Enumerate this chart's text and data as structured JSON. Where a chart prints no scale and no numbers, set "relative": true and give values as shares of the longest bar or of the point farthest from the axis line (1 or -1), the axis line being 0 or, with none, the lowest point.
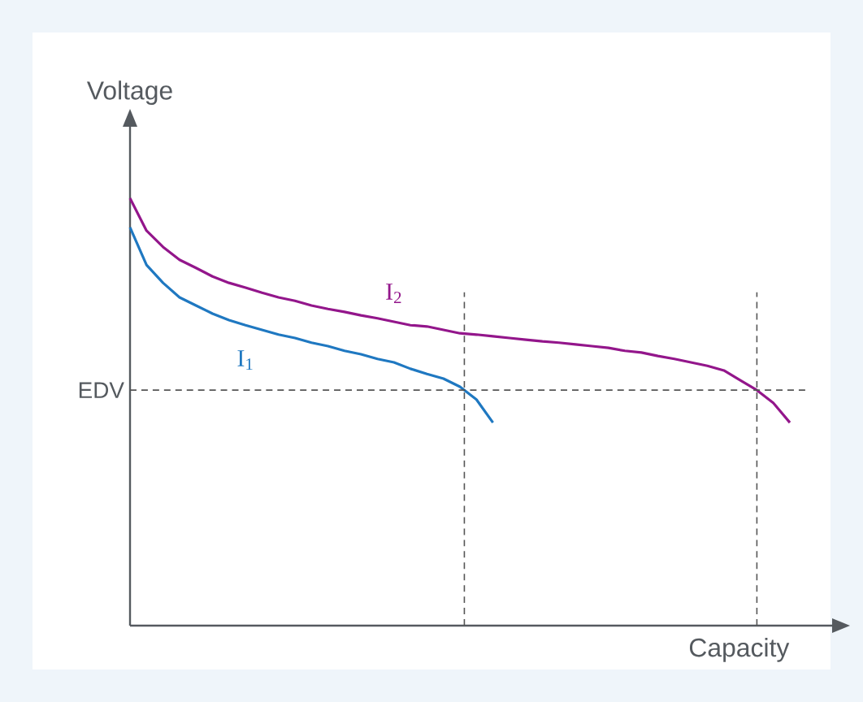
{
  "chart_data": {
    "type": "line",
    "relative": true,
    "xlabel": "Capacity",
    "ylabel": "Voltage",
    "legend": false,
    "categories": [
      null,
      null,
      null,
      null,
      null,
      null,
      null,
      null,
      null,
      null,
      null,
      null,
      null,
      null,
      null,
      null,
      null,
      null,
      null,
      null,
      null,
      null,
      null,
      null,
      null,
      null,
      null,
      null,
      null,
      null,
      null,
      null,
      null,
      null,
      null,
      null,
      null,
      null,
      null,
      null,
      null
    ],
    "series": [
      {
        "name": "I$_{1}$",
        "color": "#1f78c1",
        "values": [
          0.932,
          0.844,
          0.802,
          0.768,
          0.749,
          0.73,
          0.715,
          0.703,
          0.692,
          0.681,
          0.673,
          0.662,
          0.654,
          0.643,
          0.635,
          0.624,
          0.616,
          0.601,
          0.589,
          0.578,
          0.559,
          0.529,
          0.475,
          null,
          null,
          null,
          null,
          null,
          null,
          null,
          null,
          null,
          null,
          null,
          null,
          null,
          null,
          null,
          null,
          null,
          null
        ]
      },
      {
        "name": "I$_{2}$",
        "color": "#93168b",
        "values": [
          1,
          0.924,
          0.886,
          0.856,
          0.837,
          0.817,
          0.802,
          0.791,
          0.779,
          0.768,
          0.76,
          0.749,
          0.741,
          0.734,
          0.726,
          0.719,
          0.711,
          0.703,
          0.7,
          0.692,
          0.684,
          0.681,
          0.677,
          0.673,
          0.669,
          0.665,
          0.662,
          0.658,
          0.654,
          0.65,
          0.643,
          0.639,
          0.631,
          0.624,
          0.616,
          0.608,
          0.597,
          0.574,
          0.551,
          0.521,
          0.475
        ]
      }
    ],
    "ref_lines": [
      {
        "axis": "y",
        "value": 0.551,
        "label": "EDV",
        "color": "#555555",
        "line_style": "dashed"
      }
    ]
  }
}
